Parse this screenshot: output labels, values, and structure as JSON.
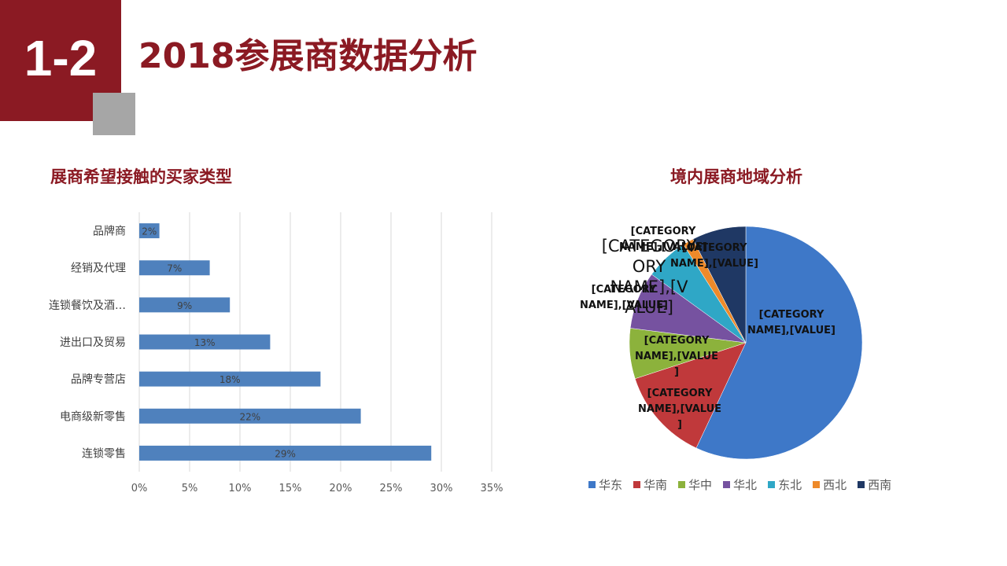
{
  "header": {
    "section_number": "1-2",
    "title": "2018参展商数据分析"
  },
  "colors": {
    "brand_red": "#8b1a23",
    "corner_gray": "#a6a6a6",
    "bar_blue": "#4f81bd"
  },
  "chart_data": [
    {
      "type": "bar",
      "orientation": "horizontal",
      "title": "展商希望接触的买家类型",
      "categories": [
        "品牌商",
        "经销及代理",
        "连锁餐饮及酒…",
        "进出口及贸易",
        "品牌专营店",
        "电商级新零售",
        "连锁零售"
      ],
      "values": [
        2,
        7,
        9,
        13,
        18,
        22,
        29
      ],
      "data_labels": [
        "2%",
        "7%",
        "9%",
        "13%",
        "18%",
        "22%",
        "29%"
      ],
      "xlim": [
        0,
        35
      ],
      "x_ticks": [
        "0%",
        "5%",
        "10%",
        "15%",
        "20%",
        "25%",
        "30%",
        "35%"
      ],
      "grid": true,
      "color": "#4f81bd"
    },
    {
      "type": "pie",
      "title": "境内展商地域分析",
      "categories": [
        "华东",
        "华南",
        "华中",
        "华北",
        "东北",
        "西北",
        "西南"
      ],
      "values": [
        57,
        13,
        7,
        8,
        6,
        1.5,
        7.5
      ],
      "colors": [
        "#3e78c8",
        "#c0393b",
        "#8cb23c",
        "#7652a0",
        "#2fa7c6",
        "#ee8a2a",
        "#1f3864"
      ],
      "data_labels": [
        "[CATEGORY NAME],[VALUE]",
        "[CATEGORY NAME],[VALUE]",
        "[CATEGORY NAME],[VALUE]",
        "[CATEGORY NAME],[VALUE]",
        "[CATEGORY NAME],[VALUE]",
        "[CATEGORY NAME],[VALUE]",
        "[CATEGORY NAME],[VALUE]"
      ],
      "legend_position": "bottom"
    }
  ]
}
